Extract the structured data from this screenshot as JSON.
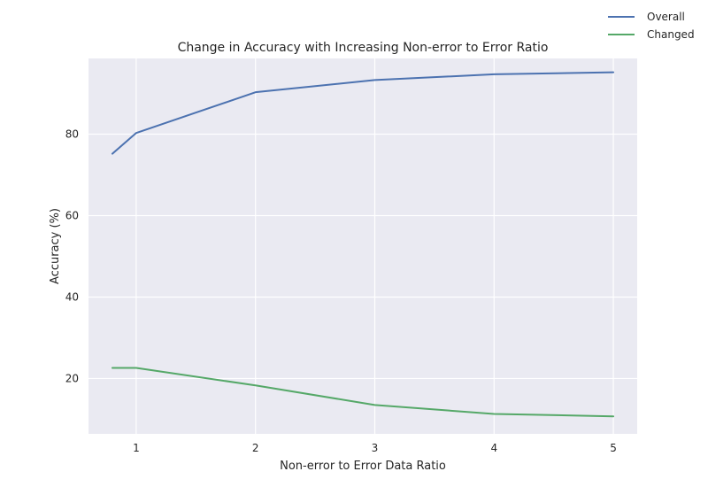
{
  "chart_data": {
    "type": "line",
    "title": "Change in Accuracy with Increasing Non-error to Error Ratio",
    "xlabel": "Non-error to Error Data Ratio",
    "ylabel": "Accuracy (%)",
    "xlim": [
      0.6,
      5.2
    ],
    "ylim": [
      6.4,
      98.6
    ],
    "xticks": [
      1,
      2,
      3,
      4,
      5
    ],
    "yticks": [
      20,
      40,
      60,
      80
    ],
    "grid": true,
    "legend_position": "top-right",
    "series": [
      {
        "name": "Overall",
        "color": "#4c72b0",
        "x": [
          0.8,
          1,
          2,
          3,
          4,
          5
        ],
        "y": [
          75.2,
          80.3,
          90.3,
          93.3,
          94.7,
          95.2
        ]
      },
      {
        "name": "Changed",
        "color": "#55a868",
        "x": [
          0.8,
          1,
          2,
          3,
          4,
          5
        ],
        "y": [
          22.6,
          22.6,
          18.3,
          13.5,
          11.3,
          10.7
        ]
      }
    ]
  }
}
